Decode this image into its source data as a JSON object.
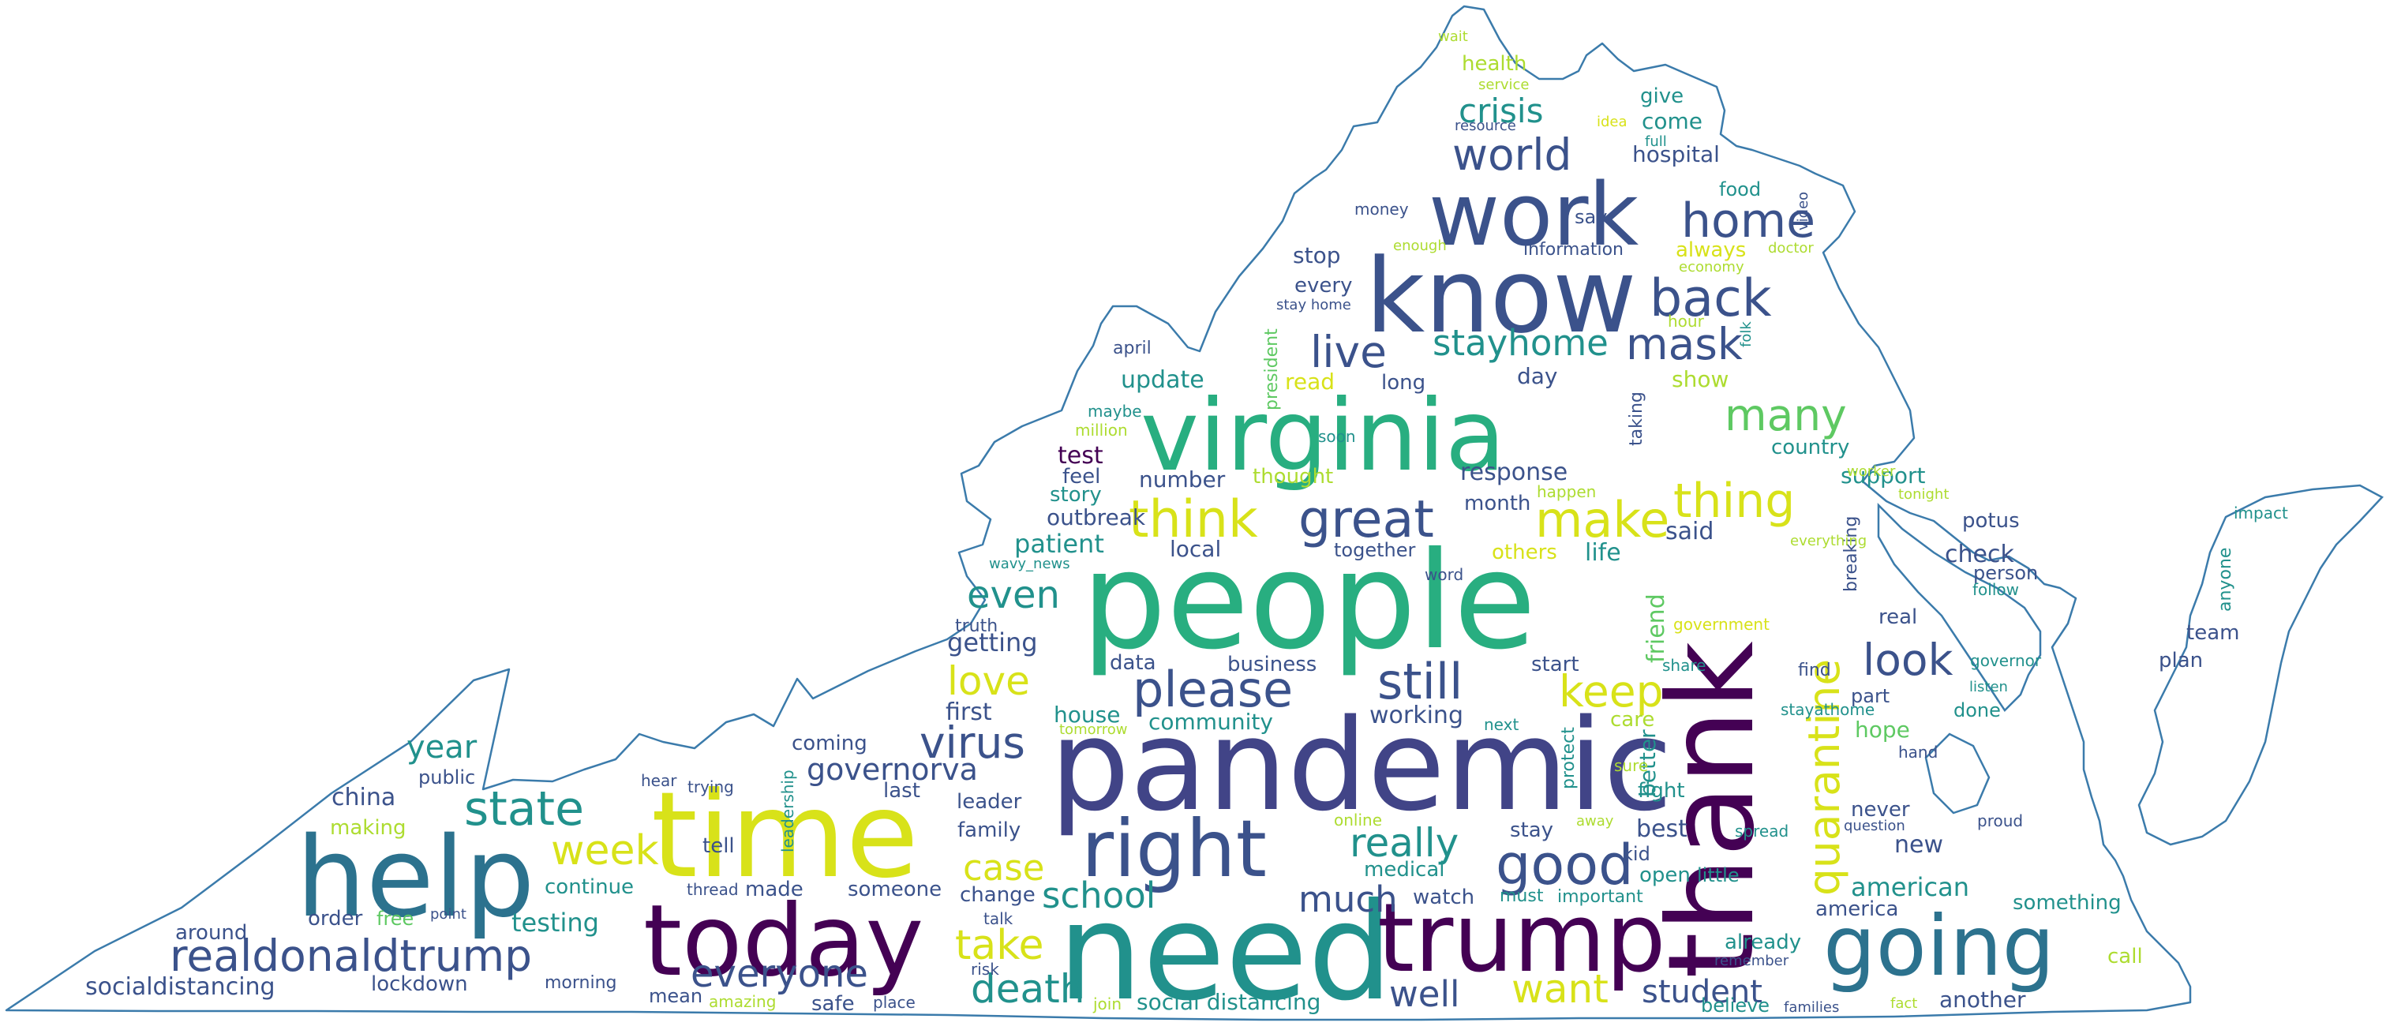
{
  "palette": {
    "outline": "#3b7bab",
    "dark_purple": "#440154",
    "indigo": "#3b528b",
    "slate_blue": "#414487",
    "steel_blue": "#2c728e",
    "teal": "#21918c",
    "sea_green": "#28ae80",
    "green": "#5ec962",
    "lime": "#addc30",
    "yellow": "#d8e219"
  },
  "words": [
    {
      "text": "need",
      "color": "teal"
    },
    {
      "text": "pandemic",
      "color": "slate_blue"
    },
    {
      "text": "people",
      "color": "sea_green"
    },
    {
      "text": "thank",
      "color": "dark_purple"
    },
    {
      "text": "time",
      "color": "yellow"
    },
    {
      "text": "help",
      "color": "steel_blue"
    },
    {
      "text": "today",
      "color": "dark_purple"
    },
    {
      "text": "trump",
      "color": "dark_purple"
    },
    {
      "text": "know",
      "color": "indigo"
    },
    {
      "text": "virginia",
      "color": "sea_green"
    },
    {
      "text": "right",
      "color": "indigo"
    },
    {
      "text": "going",
      "color": "steel_blue"
    },
    {
      "text": "work",
      "color": "indigo"
    },
    {
      "text": "realdonaldtrump",
      "color": "indigo"
    },
    {
      "text": "quarantine",
      "color": "yellow"
    },
    {
      "text": "please",
      "color": "indigo"
    },
    {
      "text": "great",
      "color": "indigo"
    },
    {
      "text": "think",
      "color": "yellow"
    },
    {
      "text": "still",
      "color": "indigo"
    },
    {
      "text": "state",
      "color": "teal"
    },
    {
      "text": "good",
      "color": "indigo"
    },
    {
      "text": "make",
      "color": "yellow"
    },
    {
      "text": "thing",
      "color": "yellow"
    },
    {
      "text": "back",
      "color": "indigo"
    },
    {
      "text": "home",
      "color": "indigo"
    },
    {
      "text": "world",
      "color": "indigo"
    },
    {
      "text": "virus",
      "color": "indigo"
    },
    {
      "text": "everyone",
      "color": "indigo"
    },
    {
      "text": "look",
      "color": "indigo"
    },
    {
      "text": "take",
      "color": "yellow"
    },
    {
      "text": "death",
      "color": "teal"
    },
    {
      "text": "keep",
      "color": "yellow"
    },
    {
      "text": "love",
      "color": "yellow"
    },
    {
      "text": "week",
      "color": "yellow"
    },
    {
      "text": "want",
      "color": "yellow"
    },
    {
      "text": "live",
      "color": "indigo"
    },
    {
      "text": "stayhome",
      "color": "teal"
    },
    {
      "text": "mask",
      "color": "indigo"
    },
    {
      "text": "many",
      "color": "green"
    },
    {
      "text": "school",
      "color": "teal"
    },
    {
      "text": "much",
      "color": "indigo"
    },
    {
      "text": "well",
      "color": "indigo"
    },
    {
      "text": "case",
      "color": "yellow"
    },
    {
      "text": "even",
      "color": "teal"
    },
    {
      "text": "really",
      "color": "teal"
    },
    {
      "text": "governorva",
      "color": "indigo"
    },
    {
      "text": "student",
      "color": "indigo"
    },
    {
      "text": "crisis",
      "color": "teal"
    },
    {
      "text": "year",
      "color": "teal"
    },
    {
      "text": "socialdistancing",
      "color": "indigo"
    },
    {
      "text": "american",
      "color": "teal"
    },
    {
      "text": "china",
      "color": "indigo"
    },
    {
      "text": "testing",
      "color": "teal"
    },
    {
      "text": "public",
      "color": "indigo"
    },
    {
      "text": "around",
      "color": "indigo"
    },
    {
      "text": "order",
      "color": "indigo"
    },
    {
      "text": "free",
      "color": "green"
    },
    {
      "text": "point",
      "color": "indigo"
    },
    {
      "text": "lockdown",
      "color": "indigo"
    },
    {
      "text": "morning",
      "color": "indigo"
    },
    {
      "text": "mean",
      "color": "indigo"
    },
    {
      "text": "amazing",
      "color": "lime"
    },
    {
      "text": "safe",
      "color": "indigo"
    },
    {
      "text": "place",
      "color": "indigo"
    },
    {
      "text": "join",
      "color": "lime"
    },
    {
      "text": "social distancing",
      "color": "teal"
    },
    {
      "text": "continue",
      "color": "teal"
    },
    {
      "text": "making",
      "color": "lime"
    },
    {
      "text": "tell",
      "color": "indigo"
    },
    {
      "text": "hear",
      "color": "indigo"
    },
    {
      "text": "trying",
      "color": "indigo"
    },
    {
      "text": "leadership",
      "color": "teal"
    },
    {
      "text": "thread",
      "color": "indigo"
    },
    {
      "text": "made",
      "color": "indigo"
    },
    {
      "text": "someone",
      "color": "indigo"
    },
    {
      "text": "coming",
      "color": "indigo"
    },
    {
      "text": "last",
      "color": "indigo"
    },
    {
      "text": "leader",
      "color": "indigo"
    },
    {
      "text": "family",
      "color": "indigo"
    },
    {
      "text": "change",
      "color": "indigo"
    },
    {
      "text": "talk",
      "color": "indigo"
    },
    {
      "text": "risk",
      "color": "indigo"
    },
    {
      "text": "first",
      "color": "indigo"
    },
    {
      "text": "getting",
      "color": "indigo"
    },
    {
      "text": "truth",
      "color": "indigo"
    },
    {
      "text": "patient",
      "color": "teal"
    },
    {
      "text": "outbreak",
      "color": "indigo"
    },
    {
      "text": "story",
      "color": "teal"
    },
    {
      "text": "feel",
      "color": "indigo"
    },
    {
      "text": "test",
      "color": "dark_purple"
    },
    {
      "text": "wavy_news",
      "color": "teal"
    },
    {
      "text": "data",
      "color": "indigo"
    },
    {
      "text": "house",
      "color": "teal"
    },
    {
      "text": "tomorrow",
      "color": "lime"
    },
    {
      "text": "community",
      "color": "teal"
    },
    {
      "text": "business",
      "color": "indigo"
    },
    {
      "text": "working",
      "color": "indigo"
    },
    {
      "text": "next",
      "color": "teal"
    },
    {
      "text": "word",
      "color": "indigo"
    },
    {
      "text": "together",
      "color": "indigo"
    },
    {
      "text": "local",
      "color": "indigo"
    },
    {
      "text": "number",
      "color": "indigo"
    },
    {
      "text": "thought",
      "color": "lime"
    },
    {
      "text": "response",
      "color": "indigo"
    },
    {
      "text": "month",
      "color": "indigo"
    },
    {
      "text": "happen",
      "color": "lime"
    },
    {
      "text": "others",
      "color": "yellow"
    },
    {
      "text": "life",
      "color": "teal"
    },
    {
      "text": "said",
      "color": "indigo"
    },
    {
      "text": "friend",
      "color": "green"
    },
    {
      "text": "protect",
      "color": "teal"
    },
    {
      "text": "care",
      "color": "lime"
    },
    {
      "text": "better",
      "color": "teal"
    },
    {
      "text": "start",
      "color": "indigo"
    },
    {
      "text": "share",
      "color": "teal"
    },
    {
      "text": "government",
      "color": "yellow"
    },
    {
      "text": "sure",
      "color": "lime"
    },
    {
      "text": "fight",
      "color": "teal"
    },
    {
      "text": "online",
      "color": "lime"
    },
    {
      "text": "medical",
      "color": "teal"
    },
    {
      "text": "away",
      "color": "lime"
    },
    {
      "text": "stay",
      "color": "indigo"
    },
    {
      "text": "kid",
      "color": "indigo"
    },
    {
      "text": "best",
      "color": "indigo"
    },
    {
      "text": "open",
      "color": "teal"
    },
    {
      "text": "little",
      "color": "teal"
    },
    {
      "text": "spread",
      "color": "teal"
    },
    {
      "text": "watch",
      "color": "indigo"
    },
    {
      "text": "must",
      "color": "teal"
    },
    {
      "text": "important",
      "color": "teal"
    },
    {
      "text": "already",
      "color": "teal"
    },
    {
      "text": "america",
      "color": "indigo"
    },
    {
      "text": "remember",
      "color": "indigo"
    },
    {
      "text": "believe",
      "color": "teal"
    },
    {
      "text": "families",
      "color": "indigo"
    },
    {
      "text": "fact",
      "color": "lime"
    },
    {
      "text": "another",
      "color": "indigo"
    },
    {
      "text": "call",
      "color": "lime"
    },
    {
      "text": "something",
      "color": "teal"
    },
    {
      "text": "proud",
      "color": "indigo"
    },
    {
      "text": "question",
      "color": "indigo"
    },
    {
      "text": "never",
      "color": "indigo"
    },
    {
      "text": "new",
      "color": "indigo"
    },
    {
      "text": "hand",
      "color": "indigo"
    },
    {
      "text": "hope",
      "color": "green"
    },
    {
      "text": "done",
      "color": "teal"
    },
    {
      "text": "listen",
      "color": "teal"
    },
    {
      "text": "part",
      "color": "indigo"
    },
    {
      "text": "stayathome",
      "color": "teal"
    },
    {
      "text": "find",
      "color": "indigo"
    },
    {
      "text": "governor",
      "color": "teal"
    },
    {
      "text": "real",
      "color": "indigo"
    },
    {
      "text": "breaking",
      "color": "indigo"
    },
    {
      "text": "team",
      "color": "indigo"
    },
    {
      "text": "plan",
      "color": "indigo"
    },
    {
      "text": "anyone",
      "color": "teal"
    },
    {
      "text": "impact",
      "color": "teal"
    },
    {
      "text": "check",
      "color": "indigo"
    },
    {
      "text": "person",
      "color": "indigo"
    },
    {
      "text": "follow",
      "color": "teal"
    },
    {
      "text": "potus",
      "color": "indigo"
    },
    {
      "text": "tonight",
      "color": "lime"
    },
    {
      "text": "everything",
      "color": "lime"
    },
    {
      "text": "support",
      "color": "teal"
    },
    {
      "text": "worker",
      "color": "lime"
    },
    {
      "text": "country",
      "color": "teal"
    },
    {
      "text": "show",
      "color": "lime"
    },
    {
      "text": "taking",
      "color": "indigo"
    },
    {
      "text": "day",
      "color": "indigo"
    },
    {
      "text": "long",
      "color": "indigo"
    },
    {
      "text": "read",
      "color": "yellow"
    },
    {
      "text": "update",
      "color": "teal"
    },
    {
      "text": "president",
      "color": "green"
    },
    {
      "text": "soon",
      "color": "teal"
    },
    {
      "text": "april",
      "color": "indigo"
    },
    {
      "text": "maybe",
      "color": "teal"
    },
    {
      "text": "million",
      "color": "lime"
    },
    {
      "text": "stop",
      "color": "indigo"
    },
    {
      "text": "every",
      "color": "indigo"
    },
    {
      "text": "stay home",
      "color": "indigo"
    },
    {
      "text": "hour",
      "color": "lime"
    },
    {
      "text": "folk",
      "color": "teal"
    },
    {
      "text": "money",
      "color": "indigo"
    },
    {
      "text": "enough",
      "color": "lime"
    },
    {
      "text": "information",
      "color": "indigo"
    },
    {
      "text": "always",
      "color": "yellow"
    },
    {
      "text": "economy",
      "color": "lime"
    },
    {
      "text": "say",
      "color": "indigo"
    },
    {
      "text": "doctor",
      "color": "lime"
    },
    {
      "text": "video",
      "color": "indigo"
    },
    {
      "text": "food",
      "color": "teal"
    },
    {
      "text": "hospital",
      "color": "indigo"
    },
    {
      "text": "come",
      "color": "teal"
    },
    {
      "text": "full",
      "color": "teal"
    },
    {
      "text": "give",
      "color": "teal"
    },
    {
      "text": "idea",
      "color": "yellow"
    },
    {
      "text": "resource",
      "color": "indigo"
    },
    {
      "text": "health",
      "color": "lime"
    },
    {
      "text": "service",
      "color": "lime"
    },
    {
      "text": "wait",
      "color": "lime"
    }
  ]
}
